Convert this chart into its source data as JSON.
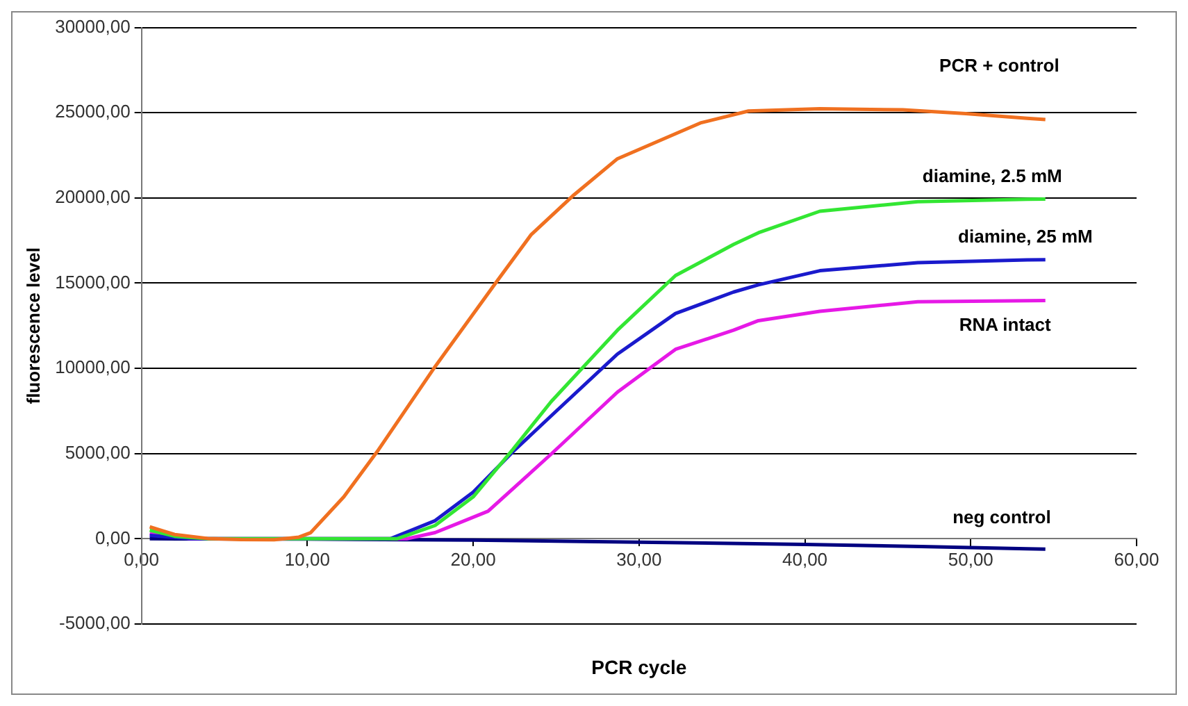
{
  "chart_data": {
    "type": "line",
    "xlabel": "PCR cycle",
    "ylabel": "fluorescence level",
    "xlim": [
      0,
      60
    ],
    "xticks": [
      {
        "value": 0,
        "label": "0,00"
      },
      {
        "value": 10,
        "label": "10,00"
      },
      {
        "value": 20,
        "label": "20,00"
      },
      {
        "value": 30,
        "label": "30,00"
      },
      {
        "value": 40,
        "label": "40,00"
      },
      {
        "value": 50,
        "label": "50,00"
      },
      {
        "value": 60,
        "label": "60,00"
      }
    ],
    "ylim": [
      -5000,
      30000
    ],
    "yticks": [
      {
        "value": -5000,
        "label": "-5000,00"
      },
      {
        "value": 0,
        "label": "0,00"
      },
      {
        "value": 5000,
        "label": "5000,00"
      },
      {
        "value": 10000,
        "label": "10000,00"
      },
      {
        "value": 15000,
        "label": "15000,00"
      },
      {
        "value": 20000,
        "label": "20000,00"
      },
      {
        "value": 25000,
        "label": "25000,00"
      },
      {
        "value": 30000,
        "label": "30000,00"
      }
    ],
    "grid": "y",
    "legend": false,
    "marker": "none",
    "line_style": "solid",
    "series": [
      {
        "name": "PCR + control",
        "color": "#f07020",
        "x": [
          0.5,
          2,
          4,
          6,
          8,
          9.5,
          10.2,
          12.2,
          14.2,
          17.7,
          21.5,
          23.5,
          26.1,
          28.7,
          33.7,
          36.6,
          40.9,
          45.9,
          49.7,
          53.4,
          54.5
        ],
        "values": [
          700,
          250,
          20,
          -50,
          -60,
          100,
          360,
          2460,
          5100,
          10100,
          15200,
          17850,
          20200,
          22300,
          24400,
          25100,
          25230,
          25170,
          24950,
          24670,
          24600
        ]
      },
      {
        "name": "diamine, 2.5 mM",
        "color": "#33e633",
        "x": [
          0.5,
          2,
          4,
          10,
          15.4,
          17.7,
          20,
          22.4,
          24.7,
          28.7,
          32.2,
          35.7,
          37.2,
          40.9,
          46.8,
          53.4,
          54.5
        ],
        "values": [
          500,
          150,
          0,
          0,
          0,
          780,
          2460,
          5250,
          8050,
          12240,
          15450,
          17270,
          17960,
          19220,
          19780,
          19920,
          19930
        ]
      },
      {
        "name": "diamine, 25 mM",
        "color": "#1a1acc",
        "x": [
          0.5,
          3,
          10,
          15,
          17.7,
          20,
          22.4,
          24.7,
          28.7,
          32.2,
          35.7,
          37.2,
          40.9,
          46.8,
          53.4,
          54.5
        ],
        "values": [
          200,
          0,
          0,
          0,
          1060,
          2740,
          5110,
          7210,
          10840,
          13220,
          14480,
          14900,
          15730,
          16200,
          16370,
          16380
        ]
      },
      {
        "name": "RNA intact",
        "color": "#e619e6",
        "x": [
          0.5,
          3,
          10,
          16,
          17.7,
          20.9,
          24.7,
          28.7,
          32.2,
          35.7,
          37.2,
          40.9,
          46.8,
          53.4,
          54.5
        ],
        "values": [
          300,
          0,
          0,
          0,
          360,
          1620,
          4970,
          8610,
          11120,
          12240,
          12800,
          13350,
          13910,
          13970,
          13980
        ]
      },
      {
        "name": "neg control",
        "color": "#000080",
        "x": [
          0.5,
          10,
          20,
          30,
          40,
          47,
          53.4,
          54.5
        ],
        "values": [
          0,
          -20,
          -80,
          -200,
          -330,
          -450,
          -590,
          -610
        ]
      }
    ]
  }
}
